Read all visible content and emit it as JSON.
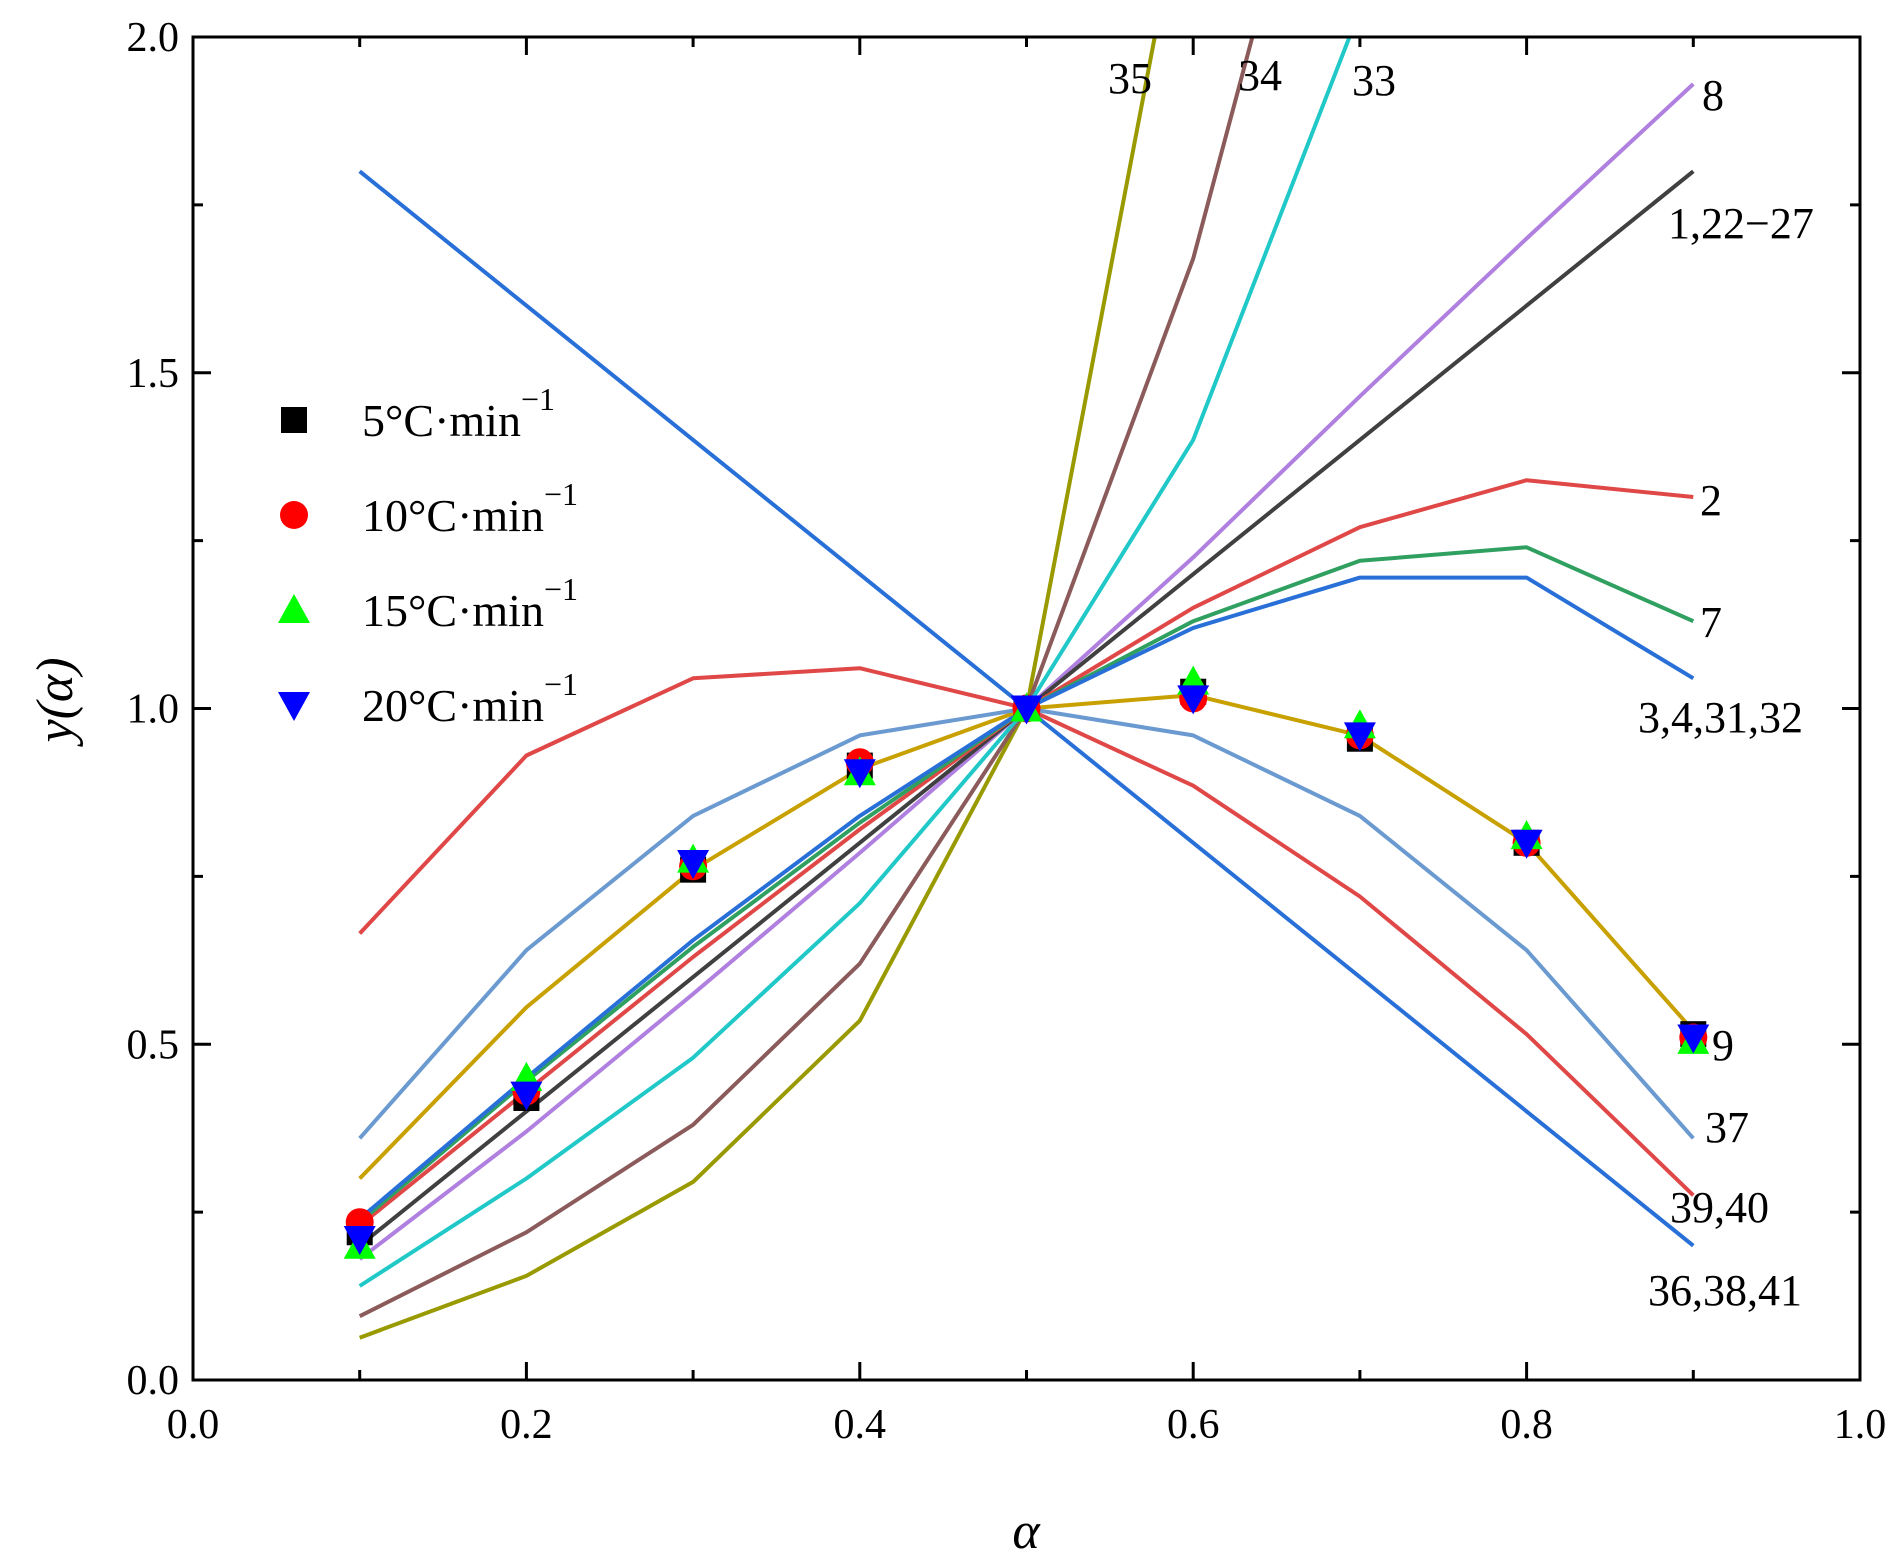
{
  "chart_data": {
    "type": "line",
    "xlabel": "α",
    "ylabel": "y(α)",
    "xlim": [
      0.0,
      1.0
    ],
    "ylim": [
      0.0,
      2.0
    ],
    "xticks": [
      "0.0",
      "0.2",
      "0.4",
      "0.6",
      "0.8",
      "1.0"
    ],
    "yticks": [
      "0.0",
      "0.5",
      "1.0",
      "1.5",
      "2.0"
    ],
    "x": [
      0.1,
      0.2,
      0.3,
      0.4,
      0.5,
      0.6,
      0.7,
      0.8,
      0.9
    ],
    "curves": [
      {
        "label": "35",
        "color": "#999900",
        "values": [
          0.063,
          0.155,
          0.295,
          0.535,
          1.0,
          2.3,
          null,
          null,
          null
        ]
      },
      {
        "label": "34",
        "color": "#8B5A5A",
        "values": [
          0.095,
          0.22,
          0.38,
          0.62,
          1.0,
          1.67,
          2.6,
          null,
          null
        ]
      },
      {
        "label": "33",
        "color": "#20C8C8",
        "values": [
          0.14,
          0.3,
          0.48,
          0.71,
          1.0,
          1.4,
          2.04,
          null,
          null
        ]
      },
      {
        "label": "8",
        "color": "#B080E0",
        "values": [
          0.18,
          0.37,
          0.575,
          0.785,
          1.0,
          1.225,
          1.465,
          1.7,
          1.93
        ]
      },
      {
        "label": "1,22−27",
        "color": "#404040",
        "values": [
          0.2,
          0.4,
          0.6,
          0.8,
          1.0,
          1.2,
          1.4,
          1.6,
          1.8
        ]
      },
      {
        "label": "2",
        "color": "#E04848",
        "values": [
          0.23,
          0.43,
          0.63,
          0.82,
          1.0,
          1.15,
          1.27,
          1.34,
          1.315
        ]
      },
      {
        "label": "7",
        "color": "#30A060",
        "values": [
          0.235,
          0.445,
          0.645,
          0.83,
          1.0,
          1.13,
          1.22,
          1.24,
          1.13
        ]
      },
      {
        "label": "3,4,31,32",
        "color": "#2870D8",
        "values": [
          0.24,
          0.45,
          0.655,
          0.84,
          1.0,
          1.12,
          1.195,
          1.195,
          1.045
        ]
      },
      {
        "label": "9",
        "color": "#C8A000",
        "values": [
          0.3,
          0.555,
          0.76,
          0.91,
          1.0,
          1.02,
          0.96,
          0.8,
          0.52
        ]
      },
      {
        "label": "37",
        "color": "#6A9AD0",
        "values": [
          0.36,
          0.64,
          0.84,
          0.96,
          1.0,
          0.96,
          0.84,
          0.64,
          0.36
        ]
      },
      {
        "label": "39,40",
        "color": "#E04848",
        "values": [
          0.665,
          0.93,
          1.045,
          1.06,
          1.0,
          0.885,
          0.72,
          0.515,
          0.275
        ]
      },
      {
        "label": "36,38,41",
        "color": "#2870D8",
        "values": [
          1.8,
          1.6,
          1.4,
          1.2,
          1.0,
          0.8,
          0.6,
          0.4,
          0.2
        ]
      }
    ],
    "series": [
      {
        "name": "5°C·min",
        "sup": "−1",
        "marker": "square",
        "color": "#000000",
        "values": [
          0.22,
          0.42,
          0.76,
          0.915,
          1.0,
          1.025,
          0.955,
          0.8,
          0.515
        ]
      },
      {
        "name": "10°C·min",
        "sup": "−1",
        "marker": "circle",
        "color": "#FF0000",
        "values": [
          0.235,
          0.43,
          0.765,
          0.92,
          1.0,
          1.015,
          0.96,
          0.8,
          0.51
        ]
      },
      {
        "name": "15°C·min",
        "sup": "−1",
        "marker": "triangle-up",
        "color": "#00FF00",
        "values": [
          0.2,
          0.45,
          0.775,
          0.905,
          1.0,
          1.04,
          0.975,
          0.81,
          0.505
        ]
      },
      {
        "name": "20°C·min",
        "sup": "−1",
        "marker": "triangle-down",
        "color": "#0000FF",
        "values": [
          0.21,
          0.425,
          0.77,
          0.905,
          1.0,
          1.015,
          0.96,
          0.8,
          0.51
        ]
      }
    ],
    "legend": "upper-left"
  }
}
